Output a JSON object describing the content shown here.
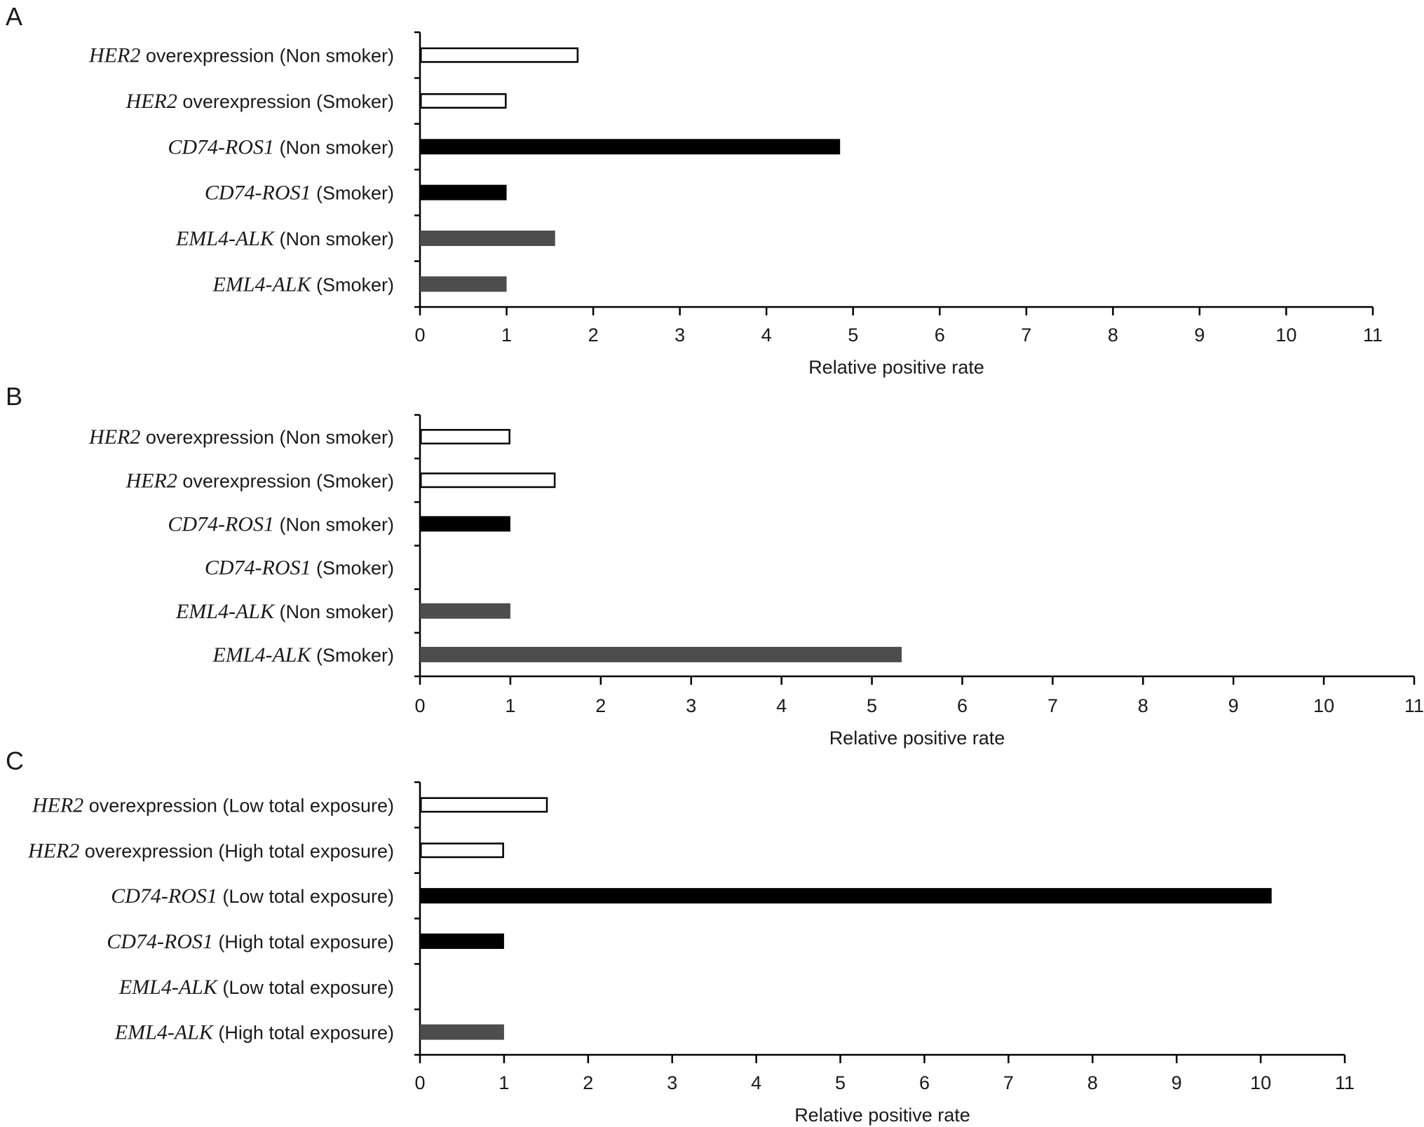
{
  "chart_data": [
    {
      "panel": "A",
      "type": "bar",
      "orientation": "horizontal",
      "xlabel": "Relative positive rate",
      "xlim": [
        0,
        11
      ],
      "xticks": [
        0,
        1,
        2,
        3,
        4,
        5,
        6,
        7,
        8,
        9,
        10,
        11
      ],
      "grid": false,
      "categories": [
        {
          "gene": "HER2",
          "rest": " overexpression (Non smoker)",
          "value": 1.83,
          "style": "outline"
        },
        {
          "gene": "HER2",
          "rest": " overexpression (Smoker)",
          "value": 1.0,
          "style": "outline"
        },
        {
          "gene": "CD74-ROS1",
          "rest": " (Non smoker)",
          "value": 4.85,
          "style": "black"
        },
        {
          "gene": "CD74-ROS1",
          "rest": " (Smoker)",
          "value": 1.0,
          "style": "black"
        },
        {
          "gene": "EML4-ALK",
          "rest": " (Non smoker)",
          "value": 1.56,
          "style": "gray"
        },
        {
          "gene": "EML4-ALK",
          "rest": " (Smoker)",
          "value": 1.0,
          "style": "gray"
        }
      ]
    },
    {
      "panel": "B",
      "type": "bar",
      "orientation": "horizontal",
      "xlabel": "Relative positive rate",
      "xlim": [
        0,
        11
      ],
      "xticks": [
        0,
        1,
        2,
        3,
        4,
        5,
        6,
        7,
        8,
        9,
        10,
        11
      ],
      "grid": false,
      "categories": [
        {
          "gene": "HER2",
          "rest": " overexpression (Non smoker)",
          "value": 1.0,
          "style": "outline"
        },
        {
          "gene": "HER2",
          "rest": " overexpression (Smoker)",
          "value": 1.5,
          "style": "outline"
        },
        {
          "gene": "CD74-ROS1",
          "rest": " (Non smoker)",
          "value": 1.0,
          "style": "black"
        },
        {
          "gene": "CD74-ROS1",
          "rest": " (Smoker)",
          "value": 0,
          "style": "black"
        },
        {
          "gene": "EML4-ALK",
          "rest": " (Non smoker)",
          "value": 1.0,
          "style": "gray"
        },
        {
          "gene": "EML4-ALK",
          "rest": " (Smoker)",
          "value": 5.33,
          "style": "gray"
        }
      ]
    },
    {
      "panel": "C",
      "type": "bar",
      "orientation": "horizontal",
      "xlabel": "Relative positive rate",
      "xlim": [
        0,
        11
      ],
      "xticks": [
        0,
        1,
        2,
        3,
        4,
        5,
        6,
        7,
        8,
        9,
        10,
        11
      ],
      "grid": false,
      "categories": [
        {
          "gene": "HER2",
          "rest": " overexpression (Low total exposure)",
          "value": 1.52,
          "style": "outline"
        },
        {
          "gene": "HER2",
          "rest": " overexpression (High total exposure)",
          "value": 1.0,
          "style": "outline"
        },
        {
          "gene": "CD74-ROS1",
          "rest": " (Low total exposure)",
          "value": 10.13,
          "style": "black"
        },
        {
          "gene": "CD74-ROS1",
          "rest": " (High total exposure)",
          "value": 1.0,
          "style": "black"
        },
        {
          "gene": "EML4-ALK",
          "rest": " (Low total exposure)",
          "value": 0,
          "style": "gray"
        },
        {
          "gene": "EML4-ALK",
          "rest": " (High total exposure)",
          "value": 1.0,
          "style": "gray"
        }
      ]
    }
  ],
  "colors": {
    "outline_fill": "#ffffff",
    "outline_stroke": "#000000",
    "black": "#000000",
    "gray": "#4d4d4d",
    "axis": "#000000",
    "text": "#1a1a1a"
  }
}
